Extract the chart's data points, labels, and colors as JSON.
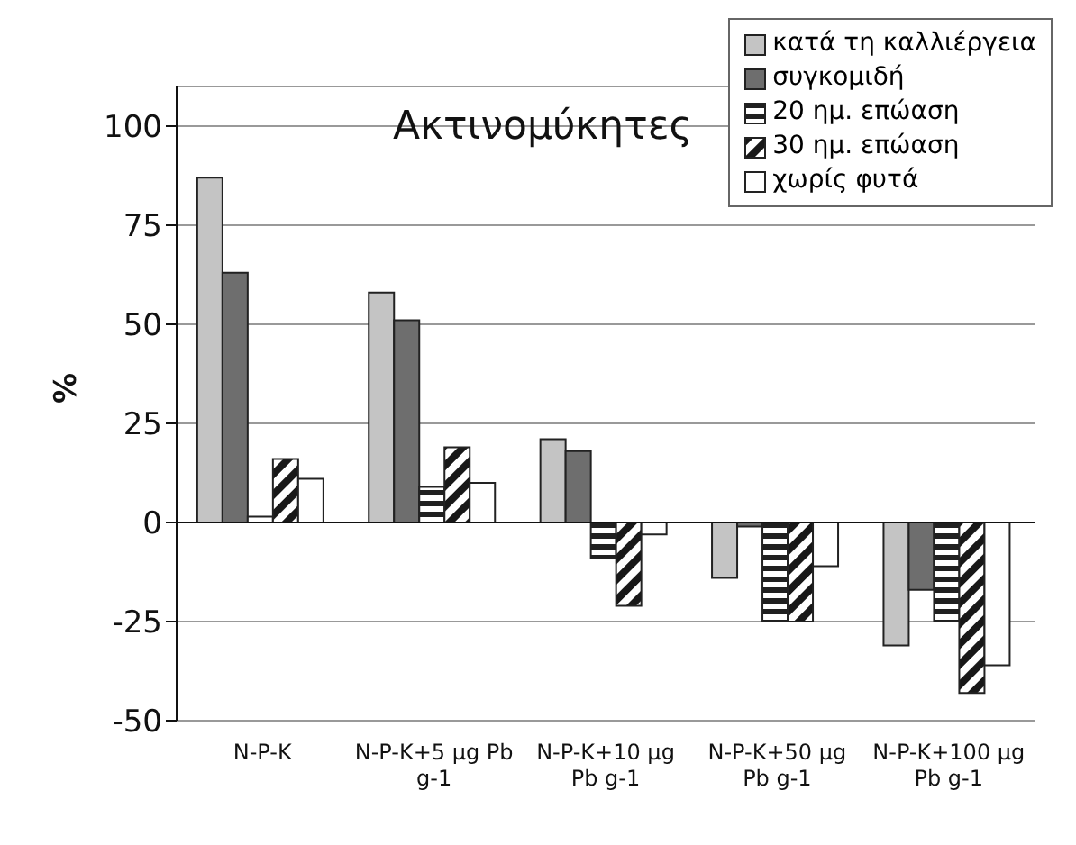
{
  "chart_data": {
    "type": "bar",
    "title": "Ακτινομύκητες",
    "ylabel": "%",
    "categories": [
      "N-P-K",
      "N-P-K+5 μg Pb g-1",
      "N-P-K+10 μg Pb g-1",
      "N-P-K+50 μg Pb g-1",
      "N-P-K+100 μg Pb g-1"
    ],
    "series": [
      {
        "name": "κατά τη καλλιέργεια",
        "color": "#c4c4c4",
        "values": [
          87,
          58,
          21,
          -14,
          -31
        ]
      },
      {
        "name": "συγκομιδή",
        "color": "#6e6e6e",
        "values": [
          63,
          51,
          18,
          -1,
          -17
        ]
      },
      {
        "name": "20 ημ. επώαση",
        "color": "#202020",
        "values": [
          1.5,
          9,
          -9,
          -25,
          -25
        ]
      },
      {
        "name": "30 ημ. επώαση",
        "color": "#181818",
        "values": [
          16,
          19,
          -21,
          -25,
          -43
        ]
      },
      {
        "name": "χωρίς φυτά",
        "color": "#ffffff",
        "values": [
          11,
          10,
          -3,
          -11,
          -36
        ]
      }
    ],
    "ylim": [
      -50,
      110
    ],
    "yticks": [
      -50,
      -25,
      0,
      25,
      50,
      75,
      100
    ],
    "grid": "y",
    "legend": "top right"
  }
}
